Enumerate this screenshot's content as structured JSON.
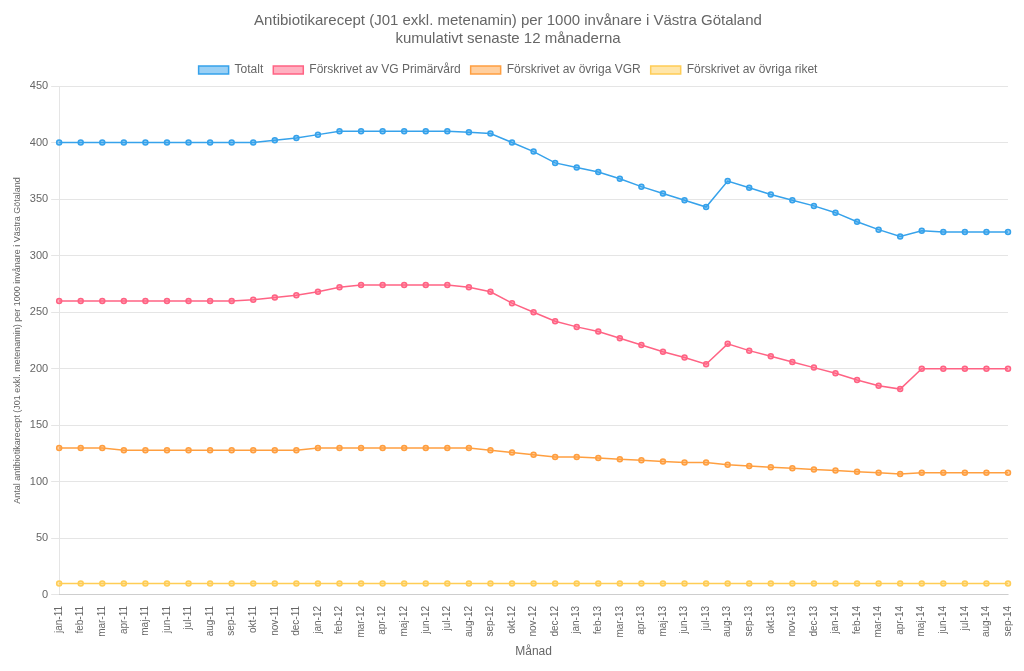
{
  "chart_data": {
    "type": "line",
    "title": "Antibiotikarecept (J01 exkl. metenamin) per 1000 invånare i Västra Götaland\nkumulativt senaste 12 månaderna",
    "xlabel": "Månad",
    "ylabel": "Antal antibiotikarecept (J01 exkl. metenamin) per 1000 invånare i Västra Götaland",
    "categories": [
      "jan-11",
      "feb-11",
      "mar-11",
      "apr-11",
      "maj-11",
      "jun-11",
      "jul-11",
      "aug-11",
      "sep-11",
      "okt-11",
      "nov-11",
      "dec-11",
      "jan-12",
      "feb-12",
      "mar-12",
      "apr-12",
      "maj-12",
      "jun-12",
      "jul-12",
      "aug-12",
      "sep-12",
      "okt-12",
      "nov-12",
      "dec-12",
      "jan-13",
      "feb-13",
      "mar-13",
      "apr-13",
      "maj-13",
      "jun-13",
      "jul-13",
      "aug-13",
      "sep-13",
      "okt-13",
      "nov-13",
      "dec-13",
      "jan-14",
      "feb-14",
      "mar-14",
      "apr-14",
      "maj-14",
      "jun-14",
      "jul-14",
      "aug-14",
      "sep-14"
    ],
    "series": [
      {
        "name": "Totalt",
        "values": [
          400,
          400,
          400,
          400,
          400,
          400,
          400,
          400,
          400,
          400,
          402,
          404,
          407,
          410,
          410,
          410,
          410,
          410,
          410,
          409,
          408,
          400,
          392,
          382,
          378,
          374,
          368,
          361,
          355,
          349,
          343,
          366,
          360,
          354,
          349,
          344,
          338,
          330,
          323,
          317,
          322,
          321,
          321,
          321,
          321
        ]
      },
      {
        "name": "Förskrivet av VG Primärvård",
        "values": [
          260,
          260,
          260,
          260,
          260,
          260,
          260,
          260,
          260,
          261,
          263,
          265,
          268,
          272,
          274,
          274,
          274,
          274,
          274,
          272,
          268,
          258,
          250,
          242,
          237,
          233,
          227,
          221,
          215,
          210,
          204,
          222,
          216,
          211,
          206,
          201,
          196,
          190,
          185,
          182,
          200,
          200,
          200,
          200,
          200
        ]
      },
      {
        "name": "Förskrivet av övriga VGR",
        "values": [
          130,
          130,
          130,
          128,
          128,
          128,
          128,
          128,
          128,
          128,
          128,
          128,
          130,
          130,
          130,
          130,
          130,
          130,
          130,
          130,
          128,
          126,
          124,
          122,
          122,
          121,
          120,
          119,
          118,
          117,
          117,
          115,
          114,
          113,
          112,
          111,
          110,
          109,
          108,
          107,
          108,
          108,
          108,
          108,
          108
        ]
      },
      {
        "name": "Förskrivet av övriga riket",
        "values": [
          10,
          10,
          10,
          10,
          10,
          10,
          10,
          10,
          10,
          10,
          10,
          10,
          10,
          10,
          10,
          10,
          10,
          10,
          10,
          10,
          10,
          10,
          10,
          10,
          10,
          10,
          10,
          10,
          10,
          10,
          10,
          10,
          10,
          10,
          10,
          10,
          10,
          10,
          10,
          10,
          10,
          10,
          10,
          10,
          10
        ]
      }
    ],
    "ylim": [
      0,
      450
    ],
    "yticks": [
      0,
      50,
      100,
      150,
      200,
      250,
      300,
      350,
      400,
      450
    ],
    "grid": true,
    "legend": "top",
    "marker": "circle"
  }
}
